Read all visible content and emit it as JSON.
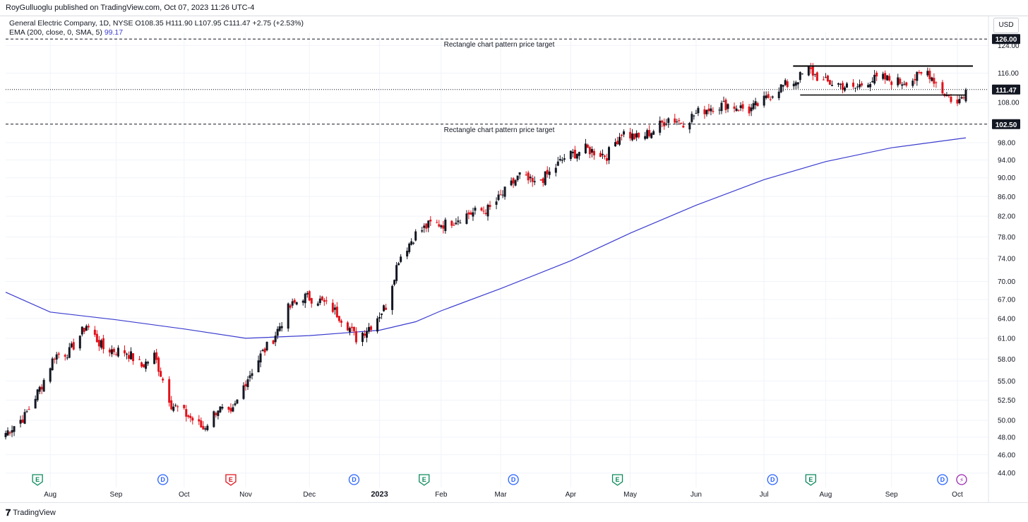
{
  "header": {
    "publisher": "RoyGulluoglu published on TradingView.com, Oct 07, 2023 11:26 UTC-4",
    "symbol_line": "General Electric Company, 1D, NYSE  O108.35  H111.90  L107.95  C111.47  +2.75 (+2.53%)",
    "indicator_line": "EMA (200, close, 0, SMA, 5)",
    "indicator_value": "99.17",
    "currency": "USD"
  },
  "footer": {
    "brand": "TradingView"
  },
  "colors": {
    "up": "#131722",
    "down": "#e0121a",
    "ema": "#3b3ccf",
    "grid": "#f0f3fa"
  },
  "chart_data": {
    "type": "candlestick",
    "symbol": "General Electric Company",
    "interval": "1D",
    "exchange": "NYSE",
    "last_bar": {
      "open": 108.35,
      "high": 111.9,
      "low": 107.95,
      "close": 111.47,
      "change": 2.75,
      "change_pct": 2.53
    },
    "y_scale": "log",
    "ylim": [
      42.5,
      128
    ],
    "y_ticks": [
      "44.00",
      "46.00",
      "48.00",
      "50.00",
      "52.50",
      "55.00",
      "58.00",
      "61.00",
      "64.00",
      "67.00",
      "70.00",
      "74.00",
      "78.00",
      "82.00",
      "86.00",
      "90.00",
      "94.00",
      "98.00",
      "108.00",
      "116.00",
      "124.00"
    ],
    "x_labels": [
      {
        "label": "Aug",
        "date": "2022-08-01"
      },
      {
        "label": "Sep",
        "date": "2022-09-01"
      },
      {
        "label": "Oct",
        "date": "2022-10-03"
      },
      {
        "label": "Nov",
        "date": "2022-11-01"
      },
      {
        "label": "Dec",
        "date": "2022-12-01"
      },
      {
        "label": "2023",
        "date": "2023-01-03"
      },
      {
        "label": "Feb",
        "date": "2023-02-01"
      },
      {
        "label": "Mar",
        "date": "2023-03-01"
      },
      {
        "label": "Apr",
        "date": "2023-04-03"
      },
      {
        "label": "May",
        "date": "2023-05-01"
      },
      {
        "label": "Jun",
        "date": "2023-06-01"
      },
      {
        "label": "Jul",
        "date": "2023-07-03"
      },
      {
        "label": "Aug",
        "date": "2023-08-01"
      },
      {
        "label": "Sep",
        "date": "2023-09-01"
      },
      {
        "label": "Oct",
        "date": "2023-10-02"
      }
    ],
    "close_path": [
      {
        "date": "2022-07-11",
        "close": 48.5
      },
      {
        "date": "2022-07-20",
        "close": 50.5
      },
      {
        "date": "2022-07-28",
        "close": 54.5
      },
      {
        "date": "2022-08-03",
        "close": 58.5
      },
      {
        "date": "2022-08-10",
        "close": 59.0
      },
      {
        "date": "2022-08-18",
        "close": 63.0
      },
      {
        "date": "2022-08-26",
        "close": 59.5
      },
      {
        "date": "2022-09-06",
        "close": 59.0
      },
      {
        "date": "2022-09-13",
        "close": 57.0
      },
      {
        "date": "2022-09-19",
        "close": 58.5
      },
      {
        "date": "2022-09-27",
        "close": 52.0
      },
      {
        "date": "2022-10-05",
        "close": 50.5
      },
      {
        "date": "2022-10-12",
        "close": 49.0
      },
      {
        "date": "2022-10-19",
        "close": 51.5
      },
      {
        "date": "2022-10-25",
        "close": 50.5
      },
      {
        "date": "2022-11-01",
        "close": 55.0
      },
      {
        "date": "2022-11-08",
        "close": 58.5
      },
      {
        "date": "2022-11-14",
        "close": 61.0
      },
      {
        "date": "2022-11-21",
        "close": 65.5
      },
      {
        "date": "2022-11-28",
        "close": 67.5
      },
      {
        "date": "2022-12-05",
        "close": 67.0
      },
      {
        "date": "2022-12-12",
        "close": 65.5
      },
      {
        "date": "2022-12-19",
        "close": 63.0
      },
      {
        "date": "2022-12-23",
        "close": 61.0
      },
      {
        "date": "2022-12-30",
        "close": 63.0
      },
      {
        "date": "2023-01-06",
        "close": 66.0
      },
      {
        "date": "2023-01-12",
        "close": 74.0
      },
      {
        "date": "2023-01-20",
        "close": 78.5
      },
      {
        "date": "2023-01-27",
        "close": 80.5
      },
      {
        "date": "2023-02-03",
        "close": 80.5
      },
      {
        "date": "2023-02-14",
        "close": 82.5
      },
      {
        "date": "2023-02-24",
        "close": 83.5
      },
      {
        "date": "2023-03-03",
        "close": 87.0
      },
      {
        "date": "2023-03-10",
        "close": 90.5
      },
      {
        "date": "2023-03-17",
        "close": 88.5
      },
      {
        "date": "2023-03-24",
        "close": 91.0
      },
      {
        "date": "2023-03-31",
        "close": 94.5
      },
      {
        "date": "2023-04-10",
        "close": 96.5
      },
      {
        "date": "2023-04-20",
        "close": 95.0
      },
      {
        "date": "2023-04-27",
        "close": 100.5
      },
      {
        "date": "2023-05-05",
        "close": 99.0
      },
      {
        "date": "2023-05-12",
        "close": 101.0
      },
      {
        "date": "2023-05-19",
        "close": 104.0
      },
      {
        "date": "2023-05-26",
        "close": 103.0
      },
      {
        "date": "2023-06-02",
        "close": 105.5
      },
      {
        "date": "2023-06-09",
        "close": 107.0
      },
      {
        "date": "2023-06-16",
        "close": 107.5
      },
      {
        "date": "2023-06-26",
        "close": 106.0
      },
      {
        "date": "2023-07-03",
        "close": 108.5
      },
      {
        "date": "2023-07-10",
        "close": 112.0
      },
      {
        "date": "2023-07-17",
        "close": 113.5
      },
      {
        "date": "2023-07-24",
        "close": 117.0
      },
      {
        "date": "2023-07-31",
        "close": 113.5
      },
      {
        "date": "2023-08-07",
        "close": 113.0
      },
      {
        "date": "2023-08-14",
        "close": 111.5
      },
      {
        "date": "2023-08-21",
        "close": 114.0
      },
      {
        "date": "2023-08-28",
        "close": 114.5
      },
      {
        "date": "2023-09-05",
        "close": 113.5
      },
      {
        "date": "2023-09-12",
        "close": 114.5
      },
      {
        "date": "2023-09-18",
        "close": 116.5
      },
      {
        "date": "2023-09-25",
        "close": 111.0
      },
      {
        "date": "2023-10-02",
        "close": 107.5
      },
      {
        "date": "2023-10-06",
        "close": 111.47
      }
    ],
    "ema_series": {
      "name": "EMA (200, close, 0, SMA, 5)",
      "points": [
        {
          "date": "2022-07-11",
          "value": 68.2
        },
        {
          "date": "2022-08-01",
          "value": 65.0
        },
        {
          "date": "2022-09-01",
          "value": 63.8
        },
        {
          "date": "2022-10-03",
          "value": 62.4
        },
        {
          "date": "2022-11-01",
          "value": 61.0
        },
        {
          "date": "2022-12-01",
          "value": 61.4
        },
        {
          "date": "2023-01-03",
          "value": 62.2
        },
        {
          "date": "2023-01-20",
          "value": 63.5
        },
        {
          "date": "2023-02-01",
          "value": 65.2
        },
        {
          "date": "2023-03-01",
          "value": 68.8
        },
        {
          "date": "2023-04-03",
          "value": 73.6
        },
        {
          "date": "2023-05-01",
          "value": 78.7
        },
        {
          "date": "2023-06-01",
          "value": 84.2
        },
        {
          "date": "2023-07-03",
          "value": 89.6
        },
        {
          "date": "2023-08-01",
          "value": 93.6
        },
        {
          "date": "2023-09-01",
          "value": 96.8
        },
        {
          "date": "2023-10-06",
          "value": 99.17
        }
      ]
    },
    "rectangle": {
      "start": "2023-07-20",
      "end": "2023-10-06",
      "top": 118.0,
      "bottom": 110.0
    },
    "price_targets": [
      {
        "value": 126.0,
        "label": "126.00",
        "text": "Rectangle chart pattern price target"
      },
      {
        "value": 102.5,
        "label": "102.50",
        "text": "Rectangle chart pattern price target"
      }
    ],
    "last_price_label": "111.47",
    "events": [
      {
        "date": "2022-07-26",
        "type": "earnings",
        "symbol": "E"
      },
      {
        "date": "2022-09-23",
        "type": "dividend",
        "symbol": "D"
      },
      {
        "date": "2022-10-25",
        "type": "earnings",
        "symbol": "E"
      },
      {
        "date": "2022-12-22",
        "type": "dividend",
        "symbol": "D"
      },
      {
        "date": "2023-01-24",
        "type": "earnings",
        "symbol": "E"
      },
      {
        "date": "2023-03-07",
        "type": "dividend",
        "symbol": "D"
      },
      {
        "date": "2023-04-25",
        "type": "earnings",
        "symbol": "E"
      },
      {
        "date": "2023-07-07",
        "type": "dividend",
        "symbol": "D"
      },
      {
        "date": "2023-07-25",
        "type": "earnings",
        "symbol": "E"
      },
      {
        "date": "2023-09-25",
        "type": "dividend",
        "symbol": "D"
      },
      {
        "date": "2023-10-04",
        "type": "split",
        "symbol": "⚡"
      }
    ]
  }
}
